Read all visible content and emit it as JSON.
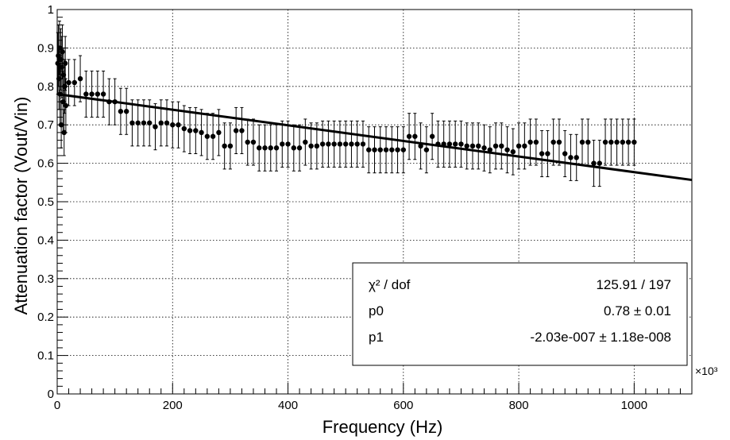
{
  "chart_data": {
    "type": "scatter",
    "title": "",
    "xlabel": "Frequency (Hz)",
    "ylabel": "Attenuation factor (Vout/Vin)",
    "x_multiplier_label": "×10³",
    "xlim": [
      0,
      1100
    ],
    "ylim": [
      0,
      1
    ],
    "x_ticks": [
      0,
      200,
      400,
      600,
      800,
      1000
    ],
    "x_tick_labels": [
      "0",
      "200",
      "400",
      "600",
      "800",
      "1000"
    ],
    "y_ticks": [
      0,
      0.1,
      0.2,
      0.3,
      0.4,
      0.5,
      0.6,
      0.7,
      0.8,
      0.9,
      1
    ],
    "y_tick_labels": [
      "0",
      "0.1",
      "0.2",
      "0.3",
      "0.4",
      "0.5",
      "0.6",
      "0.7",
      "0.8",
      "0.9",
      "1"
    ],
    "grid": true,
    "series": [
      {
        "kind": "points-with-errorbars",
        "x_unit_note": "×10³ Hz",
        "points": [
          [
            1,
            0.86,
            0.08
          ],
          [
            2,
            0.88,
            0.08
          ],
          [
            3,
            0.82,
            0.08
          ],
          [
            4,
            0.9,
            0.07
          ],
          [
            5,
            0.78,
            0.08
          ],
          [
            6,
            0.87,
            0.08
          ],
          [
            7,
            0.7,
            0.06
          ],
          [
            8,
            0.85,
            0.08
          ],
          [
            9,
            0.89,
            0.07
          ],
          [
            10,
            0.76,
            0.08
          ],
          [
            11,
            0.83,
            0.07
          ],
          [
            12,
            0.68,
            0.06
          ],
          [
            13,
            0.8,
            0.07
          ],
          [
            14,
            0.86,
            0.07
          ],
          [
            15,
            0.75,
            0.07
          ],
          [
            20,
            0.81,
            0.06
          ],
          [
            30,
            0.81,
            0.06
          ],
          [
            40,
            0.82,
            0.06
          ],
          [
            50,
            0.78,
            0.06
          ],
          [
            60,
            0.78,
            0.06
          ],
          [
            70,
            0.78,
            0.06
          ],
          [
            80,
            0.78,
            0.06
          ],
          [
            90,
            0.76,
            0.06
          ],
          [
            100,
            0.76,
            0.06
          ],
          [
            110,
            0.735,
            0.06
          ],
          [
            120,
            0.735,
            0.06
          ],
          [
            130,
            0.705,
            0.06
          ],
          [
            140,
            0.705,
            0.06
          ],
          [
            150,
            0.705,
            0.06
          ],
          [
            160,
            0.705,
            0.06
          ],
          [
            170,
            0.695,
            0.06
          ],
          [
            180,
            0.705,
            0.06
          ],
          [
            190,
            0.705,
            0.06
          ],
          [
            200,
            0.7,
            0.06
          ],
          [
            210,
            0.7,
            0.06
          ],
          [
            220,
            0.69,
            0.06
          ],
          [
            230,
            0.685,
            0.06
          ],
          [
            240,
            0.685,
            0.06
          ],
          [
            250,
            0.68,
            0.06
          ],
          [
            260,
            0.67,
            0.06
          ],
          [
            270,
            0.67,
            0.06
          ],
          [
            280,
            0.68,
            0.06
          ],
          [
            290,
            0.645,
            0.06
          ],
          [
            300,
            0.645,
            0.06
          ],
          [
            310,
            0.685,
            0.06
          ],
          [
            320,
            0.685,
            0.06
          ],
          [
            330,
            0.655,
            0.06
          ],
          [
            340,
            0.655,
            0.06
          ],
          [
            350,
            0.64,
            0.06
          ],
          [
            360,
            0.64,
            0.06
          ],
          [
            370,
            0.64,
            0.06
          ],
          [
            380,
            0.64,
            0.06
          ],
          [
            390,
            0.65,
            0.06
          ],
          [
            400,
            0.65,
            0.06
          ],
          [
            410,
            0.64,
            0.06
          ],
          [
            420,
            0.64,
            0.06
          ],
          [
            430,
            0.655,
            0.06
          ],
          [
            440,
            0.645,
            0.06
          ],
          [
            450,
            0.645,
            0.06
          ],
          [
            460,
            0.65,
            0.06
          ],
          [
            470,
            0.65,
            0.06
          ],
          [
            480,
            0.65,
            0.06
          ],
          [
            490,
            0.65,
            0.06
          ],
          [
            500,
            0.65,
            0.06
          ],
          [
            510,
            0.65,
            0.06
          ],
          [
            520,
            0.65,
            0.06
          ],
          [
            530,
            0.65,
            0.06
          ],
          [
            540,
            0.635,
            0.06
          ],
          [
            550,
            0.635,
            0.06
          ],
          [
            560,
            0.635,
            0.06
          ],
          [
            570,
            0.635,
            0.06
          ],
          [
            580,
            0.635,
            0.06
          ],
          [
            590,
            0.635,
            0.06
          ],
          [
            600,
            0.635,
            0.06
          ],
          [
            610,
            0.67,
            0.06
          ],
          [
            620,
            0.67,
            0.06
          ],
          [
            630,
            0.645,
            0.06
          ],
          [
            640,
            0.635,
            0.06
          ],
          [
            650,
            0.67,
            0.06
          ],
          [
            660,
            0.65,
            0.06
          ],
          [
            670,
            0.65,
            0.06
          ],
          [
            680,
            0.65,
            0.06
          ],
          [
            690,
            0.65,
            0.06
          ],
          [
            700,
            0.65,
            0.06
          ],
          [
            710,
            0.645,
            0.06
          ],
          [
            720,
            0.645,
            0.06
          ],
          [
            730,
            0.645,
            0.06
          ],
          [
            740,
            0.64,
            0.06
          ],
          [
            750,
            0.635,
            0.06
          ],
          [
            760,
            0.645,
            0.06
          ],
          [
            770,
            0.645,
            0.06
          ],
          [
            780,
            0.635,
            0.06
          ],
          [
            790,
            0.63,
            0.06
          ],
          [
            800,
            0.645,
            0.06
          ],
          [
            810,
            0.645,
            0.06
          ],
          [
            820,
            0.655,
            0.06
          ],
          [
            830,
            0.655,
            0.06
          ],
          [
            840,
            0.625,
            0.06
          ],
          [
            850,
            0.625,
            0.06
          ],
          [
            860,
            0.655,
            0.06
          ],
          [
            870,
            0.655,
            0.06
          ],
          [
            880,
            0.625,
            0.06
          ],
          [
            890,
            0.615,
            0.06
          ],
          [
            900,
            0.615,
            0.06
          ],
          [
            910,
            0.655,
            0.06
          ],
          [
            920,
            0.655,
            0.06
          ],
          [
            930,
            0.6,
            0.06
          ],
          [
            940,
            0.6,
            0.06
          ],
          [
            950,
            0.655,
            0.06
          ],
          [
            960,
            0.655,
            0.06
          ],
          [
            970,
            0.655,
            0.06
          ],
          [
            980,
            0.655,
            0.06
          ],
          [
            990,
            0.655,
            0.06
          ],
          [
            1000,
            0.655,
            0.06
          ]
        ],
        "point_format": [
          "x",
          "y",
          "y_error"
        ],
        "color": "#000000"
      },
      {
        "kind": "fit-line",
        "x": [
          0,
          1100
        ],
        "y": [
          0.78,
          0.5567
        ],
        "color": "#000000"
      }
    ],
    "stats_box": {
      "placement": "bottom-right",
      "rows": [
        {
          "label": "χ² / dof",
          "value": "125.91 / 197"
        },
        {
          "label": "p0",
          "value": "0.78 ± 0.01"
        },
        {
          "label": "p1",
          "value": "-2.03e-007 ± 1.18e-008"
        }
      ]
    }
  }
}
